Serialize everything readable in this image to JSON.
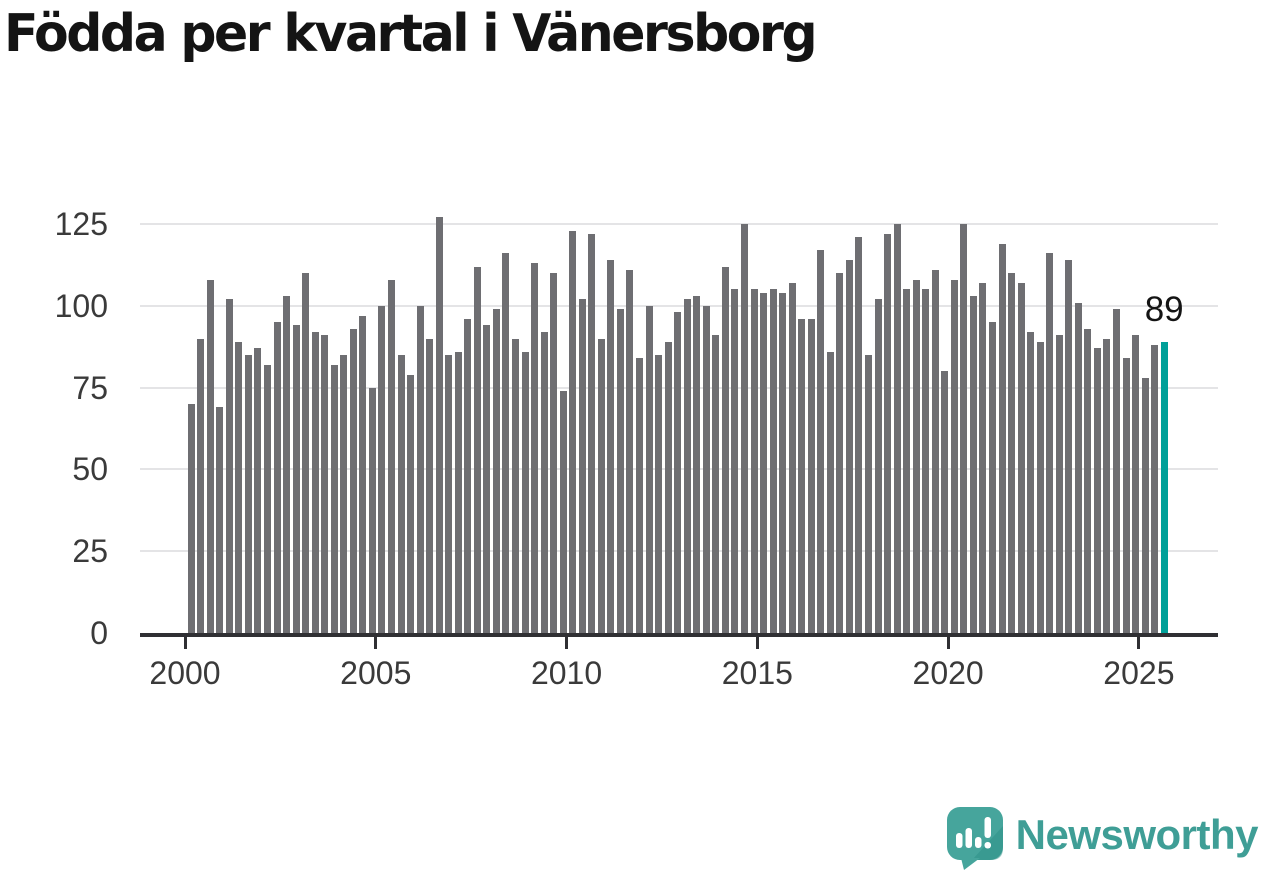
{
  "page": {
    "title": "Födda per kvartal i Vänersborg"
  },
  "chart_data": {
    "type": "bar",
    "title": "Födda per kvartal i Vänersborg",
    "frequency": "quarterly",
    "start_period": "2000Q1",
    "end_period": "2025Q3",
    "categories": [
      "2000Q1",
      "2000Q2",
      "2000Q3",
      "2000Q4",
      "2001Q1",
      "2001Q2",
      "2001Q3",
      "2001Q4",
      "2002Q1",
      "2002Q2",
      "2002Q3",
      "2002Q4",
      "2003Q1",
      "2003Q2",
      "2003Q3",
      "2003Q4",
      "2004Q1",
      "2004Q2",
      "2004Q3",
      "2004Q4",
      "2005Q1",
      "2005Q2",
      "2005Q3",
      "2005Q4",
      "2006Q1",
      "2006Q2",
      "2006Q3",
      "2006Q4",
      "2007Q1",
      "2007Q2",
      "2007Q3",
      "2007Q4",
      "2008Q1",
      "2008Q2",
      "2008Q3",
      "2008Q4",
      "2009Q1",
      "2009Q2",
      "2009Q3",
      "2009Q4",
      "2010Q1",
      "2010Q2",
      "2010Q3",
      "2010Q4",
      "2011Q1",
      "2011Q2",
      "2011Q3",
      "2011Q4",
      "2012Q1",
      "2012Q2",
      "2012Q3",
      "2012Q4",
      "2013Q1",
      "2013Q2",
      "2013Q3",
      "2013Q4",
      "2014Q1",
      "2014Q2",
      "2014Q3",
      "2014Q4",
      "2015Q1",
      "2015Q2",
      "2015Q3",
      "2015Q4",
      "2016Q1",
      "2016Q2",
      "2016Q3",
      "2016Q4",
      "2017Q1",
      "2017Q2",
      "2017Q3",
      "2017Q4",
      "2018Q1",
      "2018Q2",
      "2018Q3",
      "2018Q4",
      "2019Q1",
      "2019Q2",
      "2019Q3",
      "2019Q4",
      "2020Q1",
      "2020Q2",
      "2020Q3",
      "2020Q4",
      "2021Q1",
      "2021Q2",
      "2021Q3",
      "2021Q4",
      "2022Q1",
      "2022Q2",
      "2022Q3",
      "2022Q4",
      "2023Q1",
      "2023Q2",
      "2023Q3",
      "2023Q4",
      "2024Q1",
      "2024Q2",
      "2024Q3",
      "2024Q4",
      "2025Q1",
      "2025Q2",
      "2025Q3"
    ],
    "values": [
      70,
      90,
      108,
      69,
      102,
      89,
      85,
      87,
      82,
      95,
      103,
      94,
      110,
      92,
      91,
      82,
      85,
      93,
      97,
      75,
      100,
      108,
      85,
      79,
      100,
      90,
      127,
      85,
      86,
      96,
      112,
      94,
      99,
      116,
      90,
      86,
      113,
      92,
      110,
      74,
      123,
      102,
      122,
      90,
      114,
      99,
      111,
      84,
      100,
      85,
      89,
      98,
      102,
      103,
      100,
      91,
      112,
      105,
      125,
      105,
      104,
      105,
      104,
      107,
      96,
      96,
      117,
      86,
      110,
      114,
      121,
      85,
      102,
      122,
      125,
      105,
      108,
      105,
      111,
      80,
      108,
      125,
      103,
      107,
      95,
      119,
      110,
      107,
      92,
      89,
      116,
      91,
      114,
      101,
      93,
      87,
      90,
      99,
      84,
      91,
      78,
      88,
      89
    ],
    "y_ticks": [
      0,
      25,
      50,
      75,
      100,
      125
    ],
    "x_ticks": [
      "2000",
      "2005",
      "2010",
      "2015",
      "2020",
      "2025"
    ],
    "ylim": [
      0,
      130
    ],
    "grid": "horizontal",
    "legend": "none",
    "bar_color": "#6e6e72",
    "highlight": {
      "period": "2025Q3",
      "value": 89,
      "label": "89",
      "color": "#00a099"
    }
  },
  "branding": {
    "wordmark": "Newsworthy",
    "logo_icon": "speech-bubble-bar-chart-exclamation-icon",
    "badge_color": "#46a59c",
    "badge_shade_color": "#2f9189",
    "wordmark_color": "#3f9e96"
  }
}
